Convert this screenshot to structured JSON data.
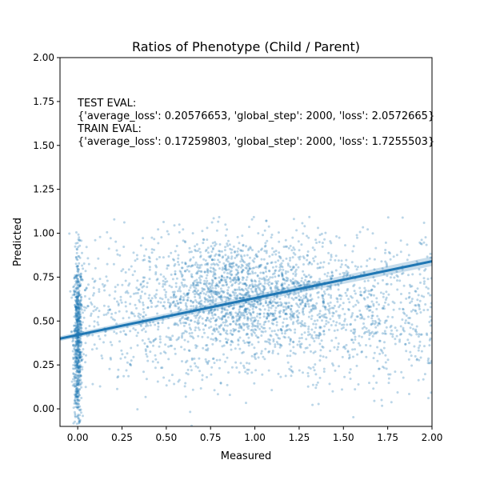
{
  "chart_data": {
    "type": "scatter",
    "title": "Ratios of Phenotype (Child / Parent)",
    "xlabel": "Measured",
    "ylabel": "Predicted",
    "xlim": [
      -0.1,
      2.0
    ],
    "ylim": [
      -0.1,
      2.0
    ],
    "xticks": [
      "0.00",
      "0.25",
      "0.50",
      "0.75",
      "1.00",
      "1.25",
      "1.50",
      "1.75",
      "2.00"
    ],
    "yticks": [
      "0.00",
      "0.25",
      "0.50",
      "0.75",
      "1.00",
      "1.25",
      "1.50",
      "1.75",
      "2.00"
    ],
    "grid": false,
    "point_color": "#1f77b4",
    "regression_line": {
      "x": [
        -0.1,
        2.0
      ],
      "y": [
        0.4,
        0.84
      ]
    },
    "annotation": [
      "TEST EVAL:",
      "{'average_loss': 0.20576653, 'global_step': 2000, 'loss': 2.0572665}",
      "TRAIN EVAL:",
      "{'average_loss': 0.17259803, 'global_step': 2000, 'loss': 1.7255503}"
    ]
  }
}
